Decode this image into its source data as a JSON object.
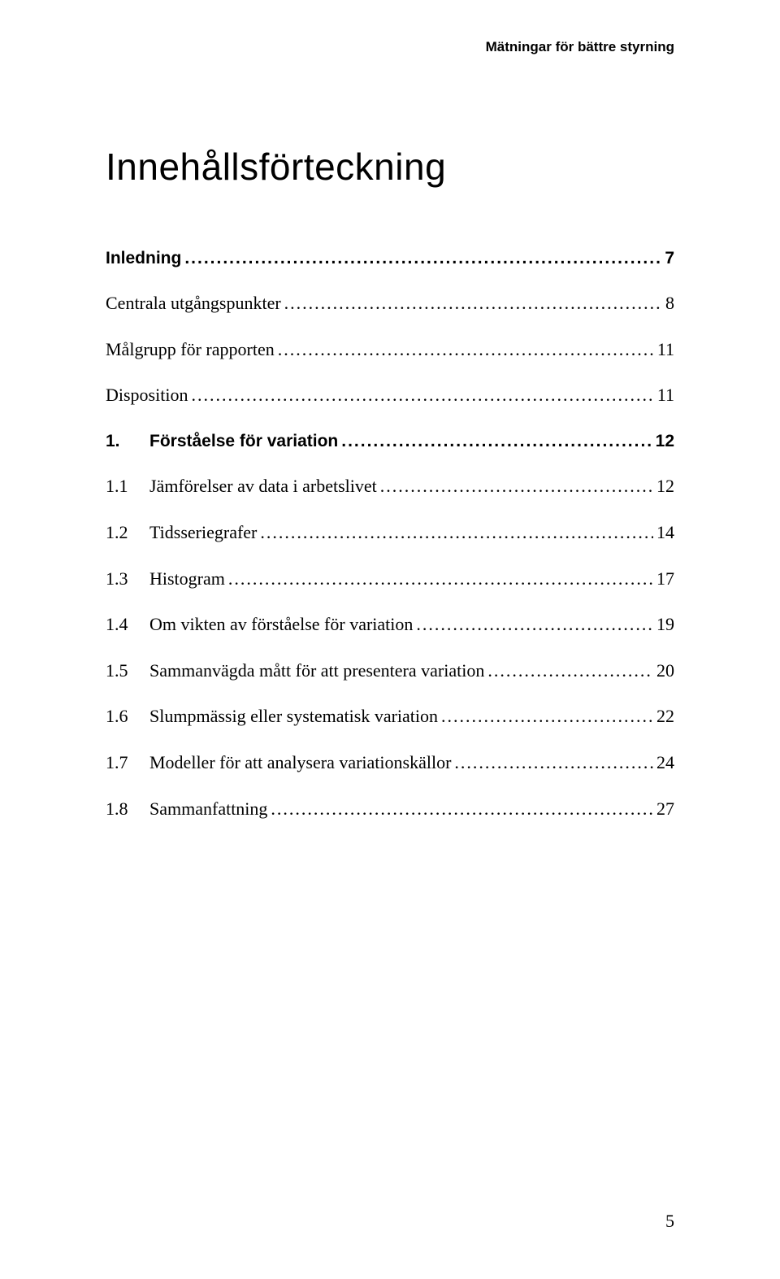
{
  "header": {
    "running_title": "Mätningar för bättre styrning"
  },
  "title": "Innehållsförteckning",
  "toc": [
    {
      "type": "bold",
      "num": "",
      "label": "Inledning",
      "page": "7"
    },
    {
      "type": "sub",
      "num": "",
      "label": "Centrala utgångspunkter",
      "page": "8"
    },
    {
      "type": "sub",
      "num": "",
      "label": "Målgrupp för rapporten",
      "page": "11"
    },
    {
      "type": "sub",
      "num": "",
      "label": "Disposition",
      "page": "11"
    },
    {
      "type": "bold section",
      "num": "1.",
      "label": "Förståelse för variation",
      "page": "12"
    },
    {
      "type": "sub",
      "num": "1.1",
      "label": "Jämförelser av data i arbetslivet",
      "page": "12"
    },
    {
      "type": "sub",
      "num": "1.2",
      "label": "Tidsseriegrafer",
      "page": "14"
    },
    {
      "type": "sub",
      "num": "1.3",
      "label": "Histogram",
      "page": "17"
    },
    {
      "type": "sub",
      "num": "1.4",
      "label": "Om vikten av förståelse för variation",
      "page": "19"
    },
    {
      "type": "sub",
      "num": "1.5",
      "label": "Sammanvägda mått för att presentera variation",
      "page": "20"
    },
    {
      "type": "sub",
      "num": "1.6",
      "label": "Slumpmässig eller systematisk variation",
      "page": "22"
    },
    {
      "type": "sub",
      "num": "1.7",
      "label": "Modeller för att analysera variationskällor",
      "page": "24"
    },
    {
      "type": "sub",
      "num": "1.8",
      "label": "Sammanfattning",
      "page": "27"
    }
  ],
  "page_number": "5",
  "colors": {
    "text": "#000000",
    "background": "#ffffff"
  },
  "typography": {
    "running_title_font": "Helvetica",
    "running_title_size_pt": 12,
    "title_font": "Helvetica",
    "title_size_pt": 34,
    "toc_bold_font": "Helvetica",
    "toc_bold_size_pt": 15,
    "toc_sub_font": "Georgia",
    "toc_sub_size_pt": 16,
    "page_number_size_pt": 16
  }
}
